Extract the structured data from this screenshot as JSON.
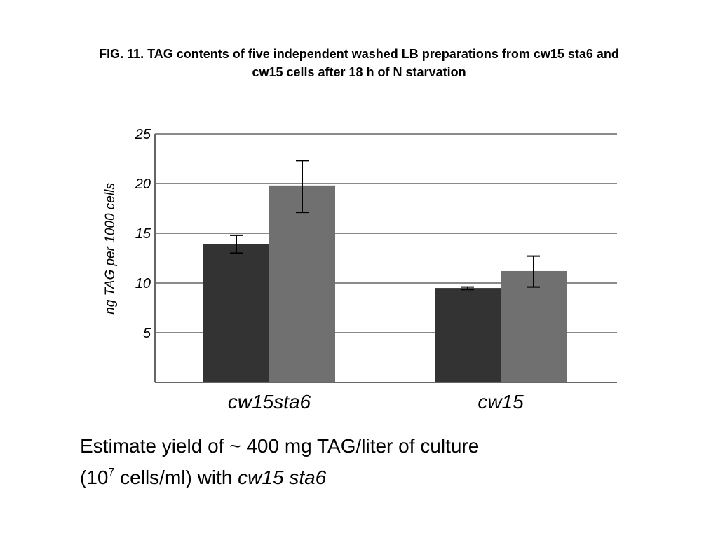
{
  "title": {
    "line1": "FIG. 11. TAG contents of five independent washed LB preparations from cw15 sta6 and",
    "line2": "cw15 cells after 18 h of N starvation"
  },
  "chart_data": {
    "type": "bar",
    "ylabel": "ng TAG per 1000 cells",
    "xlabel": "",
    "ylim": [
      0,
      25
    ],
    "yticks": [
      5,
      10,
      15,
      20,
      25
    ],
    "grid": true,
    "categories": [
      "cw15sta6",
      "cw15"
    ],
    "series": [
      {
        "values": [
          13.9,
          9.5
        ],
        "error": [
          [
            13.0,
            14.8
          ],
          [
            9.35,
            9.6
          ]
        ],
        "color": "#333333"
      },
      {
        "values": [
          19.8,
          11.2
        ],
        "error": [
          [
            17.1,
            22.3
          ],
          [
            9.6,
            12.7
          ]
        ],
        "color": "#707070"
      }
    ]
  },
  "caption": {
    "line1": "Estimate yield of  ~ 400 mg TAG/liter of culture",
    "line2_prefix": "(10",
    "line2_sup": "7",
    "line2_mid": " cells/ml)  with  ",
    "line2_italic": "cw15 sta6"
  }
}
